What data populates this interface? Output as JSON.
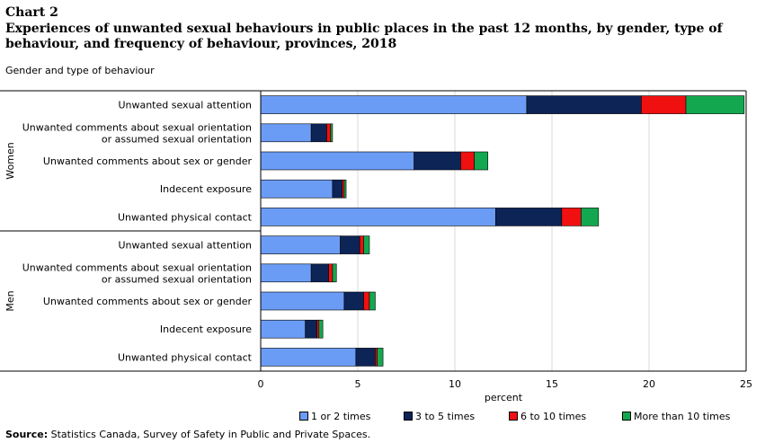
{
  "chart_number": "Chart 2",
  "title": "Experiences of unwanted sexual behaviours in public places in the past 12 months, by gender, type of behaviour, and frequency of behaviour, provinces, 2018",
  "y_axis_title": "Gender and type of behaviour",
  "source_label": "Source:",
  "source_text": "Statistics Canada, Survey of Safety in Public and Private Spaces.",
  "colors": {
    "1 or 2 times": "#6b9cf5",
    "3 to 5 times": "#0d2457",
    "6 to 10 times": "#f01010",
    "More than 10 times": "#13a84f"
  },
  "chart_data": {
    "type": "bar",
    "orientation": "horizontal",
    "stacked": true,
    "xlabel": "percent",
    "ylabel": "Gender and type of behaviour",
    "xlim": [
      0,
      25
    ],
    "xticks": [
      0,
      5,
      10,
      15,
      20,
      25
    ],
    "grid": true,
    "legend_position": "bottom",
    "groups": [
      {
        "name": "Women",
        "categories": [
          "Unwanted sexual attention",
          "Unwanted comments about sexual orientation or assumed sexual orientation",
          "Unwanted comments about sex or gender",
          "Indecent exposure",
          "Unwanted physical contact"
        ],
        "series": [
          {
            "name": "1 or 2 times",
            "values": [
              13.7,
              2.6,
              7.9,
              3.7,
              12.1
            ]
          },
          {
            "name": "3 to 5 times",
            "values": [
              5.9,
              0.8,
              2.4,
              0.5,
              3.4
            ]
          },
          {
            "name": "6 to 10 times",
            "values": [
              2.3,
              0.2,
              0.7,
              0.1,
              1.0
            ]
          },
          {
            "name": "More than 10 times",
            "values": [
              3.0,
              0.1,
              0.7,
              0.1,
              0.9
            ]
          }
        ]
      },
      {
        "name": "Men",
        "categories": [
          "Unwanted sexual attention",
          "Unwanted comments about sexual orientation or assumed sexual orientation",
          "Unwanted comments about sex or gender",
          "Indecent exposure",
          "Unwanted physical contact"
        ],
        "series": [
          {
            "name": "1 or 2 times",
            "values": [
              4.1,
              2.6,
              4.3,
              2.3,
              4.9
            ]
          },
          {
            "name": "3 to 5 times",
            "values": [
              1.0,
              0.9,
              1.0,
              0.6,
              1.0
            ]
          },
          {
            "name": "6 to 10 times",
            "values": [
              0.2,
              0.2,
              0.3,
              0.1,
              0.1
            ]
          },
          {
            "name": "More than 10 times",
            "values": [
              0.3,
              0.2,
              0.3,
              0.2,
              0.3
            ]
          }
        ]
      }
    ]
  }
}
